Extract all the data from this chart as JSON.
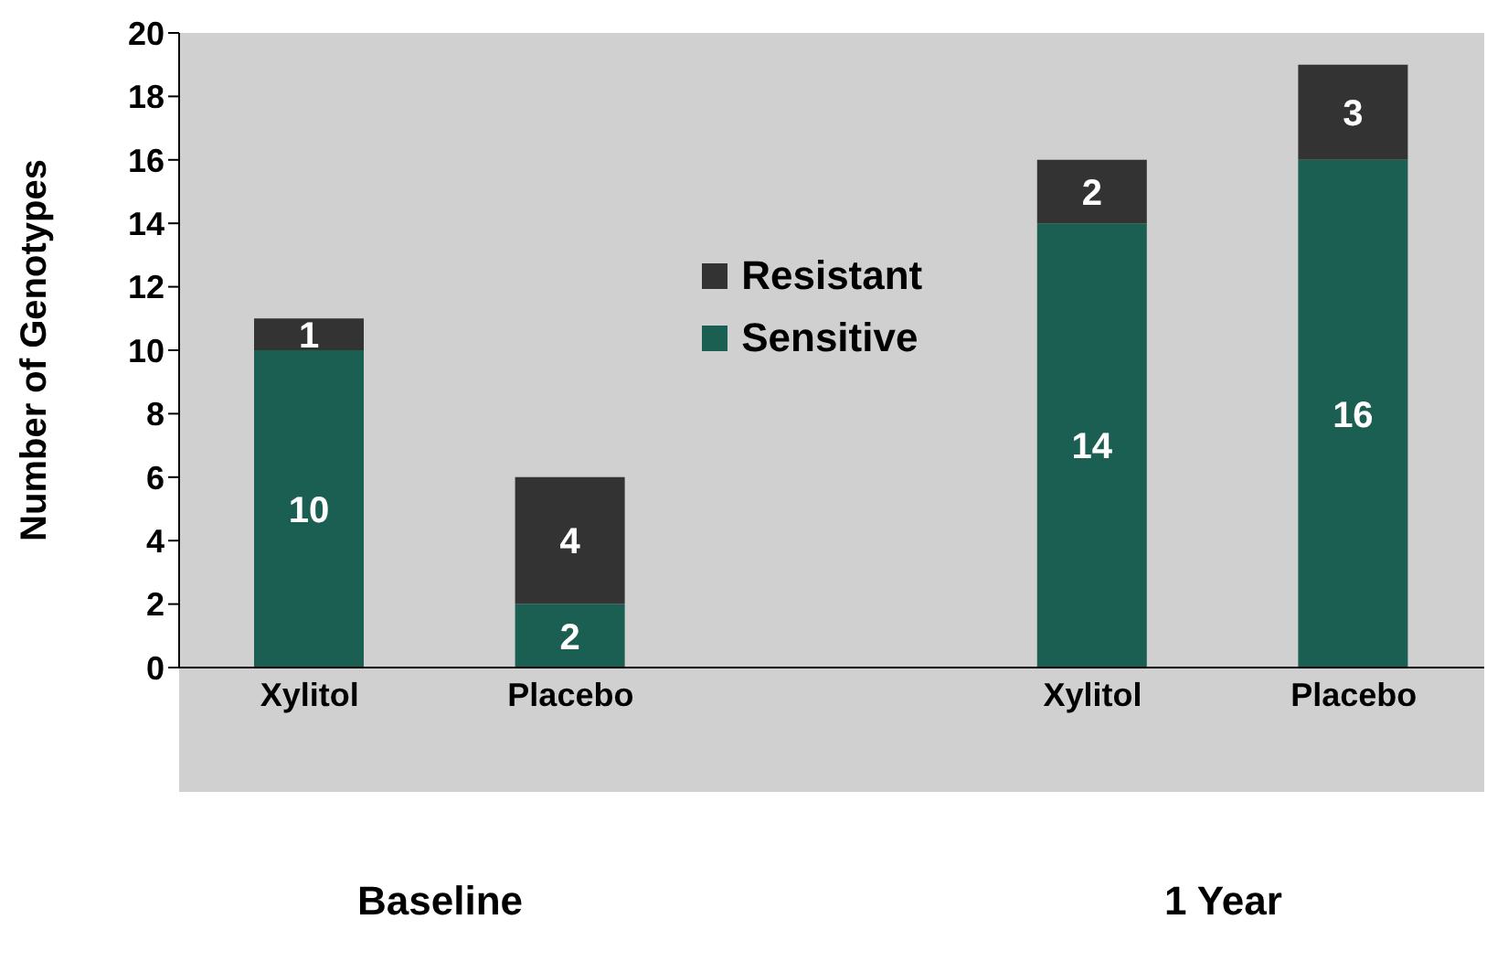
{
  "chart_data": {
    "type": "bar",
    "ylabel": "Number of Genotypes",
    "categories": [
      "Xylitol",
      "Placebo",
      null,
      "Xylitol",
      "Placebo"
    ],
    "series": [
      {
        "name": "Sensitive",
        "color": "#1b5e52",
        "values": [
          10,
          2,
          null,
          14,
          16
        ]
      },
      {
        "name": "Resistant",
        "color": "#333333",
        "values": [
          1,
          4,
          null,
          2,
          3
        ]
      }
    ],
    "stacked": true,
    "data_labels": true,
    "ylim": [
      0,
      20
    ],
    "yticks": [
      0,
      2,
      4,
      6,
      8,
      10,
      12,
      14,
      16,
      18,
      20
    ],
    "grid": false,
    "legend": "center",
    "annotations": [
      "Baseline",
      "1 Year"
    ]
  }
}
